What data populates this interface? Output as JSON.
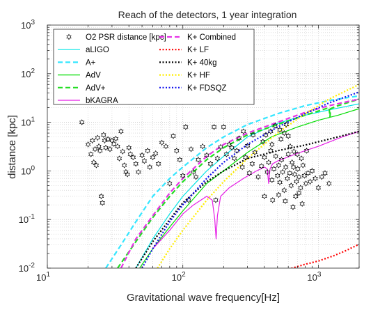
{
  "chart_data": {
    "type": "line",
    "title": "Reach of the detectors, 1 year integration",
    "xlabel": "Gravitational wave frequency[Hz]",
    "ylabel": "distance [kpc]",
    "xscale": "log",
    "yscale": "log",
    "xlim": [
      10,
      2000
    ],
    "ylim": [
      0.01,
      1000
    ],
    "x_tick_labels": [
      {
        "value": 10,
        "base": "10",
        "exp": "1"
      },
      {
        "value": 100,
        "base": "10",
        "exp": "2"
      },
      {
        "value": 1000,
        "base": "10",
        "exp": "3"
      }
    ],
    "y_tick_labels": [
      {
        "value": 0.01,
        "base": "10",
        "exp": "-2"
      },
      {
        "value": 0.1,
        "base": "10",
        "exp": "-1"
      },
      {
        "value": 1,
        "base": "10",
        "exp": "0"
      },
      {
        "value": 10,
        "base": "10",
        "exp": "1"
      },
      {
        "value": 100,
        "base": "10",
        "exp": "2"
      },
      {
        "value": 1000,
        "base": "10",
        "exp": "3"
      }
    ],
    "grid": true,
    "legend_position": "top-left",
    "scatter": {
      "name": "O2 PSR distance [kpc]",
      "marker": "hexagram",
      "points": [
        [
          18,
          10
        ],
        [
          20,
          3.5
        ],
        [
          21,
          2.2
        ],
        [
          21.5,
          4.2
        ],
        [
          22,
          1.5
        ],
        [
          22.5,
          2.8
        ],
        [
          23,
          1.3
        ],
        [
          23.5,
          4.8
        ],
        [
          24,
          3.2
        ],
        [
          24.5,
          2.6
        ],
        [
          25,
          0.3
        ],
        [
          25.5,
          0.22
        ],
        [
          26,
          5.5
        ],
        [
          26.5,
          4.2
        ],
        [
          27,
          3
        ],
        [
          28,
          4.5
        ],
        [
          29,
          2.8
        ],
        [
          30,
          4.2
        ],
        [
          31,
          3.6
        ],
        [
          32,
          4.6
        ],
        [
          33,
          3.2
        ],
        [
          34,
          1.8
        ],
        [
          35,
          6.5
        ],
        [
          36,
          2.5
        ],
        [
          37,
          1.3
        ],
        [
          38,
          0.95
        ],
        [
          39,
          0.85
        ],
        [
          40,
          3
        ],
        [
          41,
          2.2
        ],
        [
          43,
          1.9
        ],
        [
          45,
          1.4
        ],
        [
          47,
          0.95
        ],
        [
          50,
          2.1
        ],
        [
          52,
          1.6
        ],
        [
          55,
          2.6
        ],
        [
          57,
          1.2
        ],
        [
          60,
          1.9
        ],
        [
          63,
          2.3
        ],
        [
          66,
          1.4
        ],
        [
          70,
          3.8
        ],
        [
          75,
          3.2
        ],
        [
          80,
          0.55
        ],
        [
          85,
          5.2
        ],
        [
          90,
          2.6
        ],
        [
          95,
          1.7
        ],
        [
          100,
          0.8
        ],
        [
          105,
          8
        ],
        [
          110,
          0.25
        ],
        [
          115,
          2.8
        ],
        [
          120,
          0.95
        ],
        [
          125,
          0.75
        ],
        [
          130,
          1.7
        ],
        [
          140,
          3.2
        ],
        [
          150,
          2.1
        ],
        [
          160,
          1.4
        ],
        [
          170,
          8
        ],
        [
          175,
          0.25
        ],
        [
          180,
          1.8
        ],
        [
          190,
          3.1
        ],
        [
          200,
          8
        ],
        [
          210,
          2.2
        ],
        [
          220,
          3.5
        ],
        [
          230,
          3
        ],
        [
          240,
          1.8
        ],
        [
          250,
          2.6
        ],
        [
          260,
          4.7
        ],
        [
          275,
          1.2
        ],
        [
          290,
          1.9
        ],
        [
          300,
          3.3
        ],
        [
          310,
          0.9
        ],
        [
          325,
          1.4
        ],
        [
          340,
          2.4
        ],
        [
          360,
          0.75
        ],
        [
          380,
          1.25
        ],
        [
          400,
          1.9
        ],
        [
          420,
          0.95
        ],
        [
          430,
          1.5
        ],
        [
          445,
          2.6
        ],
        [
          455,
          0.65
        ],
        [
          470,
          1.1
        ],
        [
          485,
          2
        ],
        [
          500,
          0.8
        ],
        [
          510,
          1.3
        ],
        [
          520,
          0.58
        ],
        [
          535,
          1.7
        ],
        [
          545,
          0.95
        ],
        [
          560,
          0.4
        ],
        [
          575,
          1.2
        ],
        [
          590,
          0.7
        ],
        [
          600,
          2.2
        ],
        [
          615,
          0.9
        ],
        [
          630,
          0.5
        ],
        [
          640,
          1.5
        ],
        [
          655,
          1.2
        ],
        [
          670,
          0.85
        ],
        [
          690,
          0.6
        ],
        [
          705,
          1.1
        ],
        [
          720,
          0.75
        ],
        [
          740,
          0.45
        ],
        [
          760,
          0.21
        ],
        [
          770,
          1.3
        ],
        [
          790,
          0.8
        ],
        [
          810,
          0.55
        ],
        [
          840,
          0.9
        ],
        [
          870,
          0.6
        ],
        [
          900,
          1
        ],
        [
          950,
          0.7
        ],
        [
          1000,
          0.45
        ],
        [
          1060,
          0.75
        ],
        [
          1120,
          0.9
        ],
        [
          1200,
          0.55
        ],
        [
          410,
          5.5
        ],
        [
          445,
          6.5
        ],
        [
          520,
          7
        ],
        [
          560,
          6
        ],
        [
          600,
          5.2
        ],
        [
          455,
          3.5
        ],
        [
          530,
          4.5
        ],
        [
          480,
          8.5
        ],
        [
          580,
          9
        ],
        [
          390,
          4
        ],
        [
          330,
          5.5
        ],
        [
          280,
          6.5
        ],
        [
          620,
          3.2
        ],
        [
          660,
          2.5
        ],
        [
          700,
          2.2
        ],
        [
          750,
          1.8
        ],
        [
          820,
          2.6
        ],
        [
          680,
          0.3
        ],
        [
          720,
          0.35
        ],
        [
          510,
          0.32
        ],
        [
          460,
          0.25
        ],
        [
          570,
          0.24
        ],
        [
          650,
          0.18
        ],
        [
          400,
          0.3
        ]
      ]
    },
    "series": [
      {
        "name": "aLIGO",
        "color": "#00e5e5",
        "style": "solid",
        "width": 1.2,
        "x": [
          45,
          60,
          80,
          100,
          150,
          200,
          300,
          500,
          800,
          1200,
          2000
        ],
        "y": [
          0.01,
          0.04,
          0.13,
          0.3,
          1,
          2,
          5,
          9.5,
          14,
          18,
          24
        ]
      },
      {
        "name": "A+",
        "color": "#33e6ff",
        "style": "dash",
        "width": 2.2,
        "x": [
          27,
          35,
          45,
          60,
          80,
          100,
          150,
          200,
          300,
          500,
          800,
          1200,
          2000
        ],
        "y": [
          0.01,
          0.03,
          0.09,
          0.3,
          0.7,
          1.2,
          3,
          5,
          9,
          15,
          22,
          28,
          35
        ]
      },
      {
        "name": "AdV",
        "color": "#00dd00",
        "style": "solid",
        "width": 1.2,
        "x": [
          48,
          60,
          80,
          100,
          150,
          200,
          300,
          450,
          700,
          1000,
          1400,
          2000
        ],
        "y": [
          0.01,
          0.025,
          0.07,
          0.15,
          0.55,
          1,
          2.4,
          5,
          8,
          11,
          14,
          19
        ]
      },
      {
        "name": "AdV+",
        "color": "#22dd22",
        "style": "dash",
        "width": 2.2,
        "x": [
          33,
          45,
          60,
          80,
          100,
          150,
          200,
          300,
          500,
          800,
          1200,
          1220,
          1230,
          1400,
          2000
        ],
        "y": [
          0.01,
          0.035,
          0.11,
          0.3,
          0.6,
          1.7,
          3,
          5.5,
          9,
          14,
          20,
          13,
          19,
          22,
          30
        ]
      },
      {
        "name": "bKAGRA",
        "color": "#e61ee6",
        "style": "solid",
        "width": 1.2,
        "x": [
          60,
          80,
          100,
          120,
          150,
          165,
          172,
          176,
          180,
          190,
          220,
          280,
          350,
          400,
          420,
          430,
          440,
          460,
          500,
          700,
          1000,
          1500,
          2000
        ],
        "y": [
          0.025,
          0.06,
          0.13,
          0.2,
          0.3,
          0.25,
          0.1,
          0.04,
          0.12,
          0.3,
          0.45,
          0.7,
          1,
          1.2,
          1.1,
          0.55,
          1.1,
          1.4,
          1.6,
          2.3,
          3.2,
          5,
          6.5
        ]
      },
      {
        "name": "K+ Combined",
        "color": "#e633e6",
        "style": "dash",
        "width": 2.2,
        "x": [
          35,
          45,
          60,
          80,
          100,
          150,
          200,
          300,
          500,
          800,
          1200,
          2000
        ],
        "y": [
          0.01,
          0.04,
          0.12,
          0.35,
          0.7,
          2,
          3.5,
          6,
          10,
          16,
          22,
          30
        ]
      },
      {
        "name": "K+ LF",
        "color": "#ff0000",
        "style": "dot",
        "width": 2.2,
        "x": [
          600,
          800,
          1000,
          1300,
          1600,
          2000
        ],
        "y": [
          0.0095,
          0.012,
          0.014,
          0.018,
          0.023,
          0.031
        ]
      },
      {
        "name": "K+ 40kg",
        "color": "#000000",
        "style": "dot",
        "width": 2.2,
        "x": [
          45,
          60,
          80,
          100,
          150,
          200,
          300,
          500,
          800,
          1200,
          2000
        ],
        "y": [
          0.01,
          0.035,
          0.1,
          0.22,
          0.6,
          1,
          1.8,
          2.6,
          3.4,
          4.5,
          6.5
        ]
      },
      {
        "name": "K+ HF",
        "color": "#ffee00",
        "style": "dot",
        "width": 2.2,
        "x": [
          65,
          80,
          100,
          150,
          200,
          300,
          500,
          800,
          1200,
          2000
        ],
        "y": [
          0.01,
          0.025,
          0.06,
          0.25,
          0.6,
          1.8,
          6,
          15,
          30,
          60
        ]
      },
      {
        "name": "K+ FDSQZ",
        "color": "#1111ee",
        "style": "dot",
        "width": 2.2,
        "x": [
          50,
          60,
          80,
          100,
          150,
          200,
          300,
          500,
          800,
          1200,
          2000
        ],
        "y": [
          0.01,
          0.025,
          0.09,
          0.2,
          0.7,
          1.5,
          3.5,
          8,
          15,
          25,
          42
        ]
      }
    ]
  }
}
